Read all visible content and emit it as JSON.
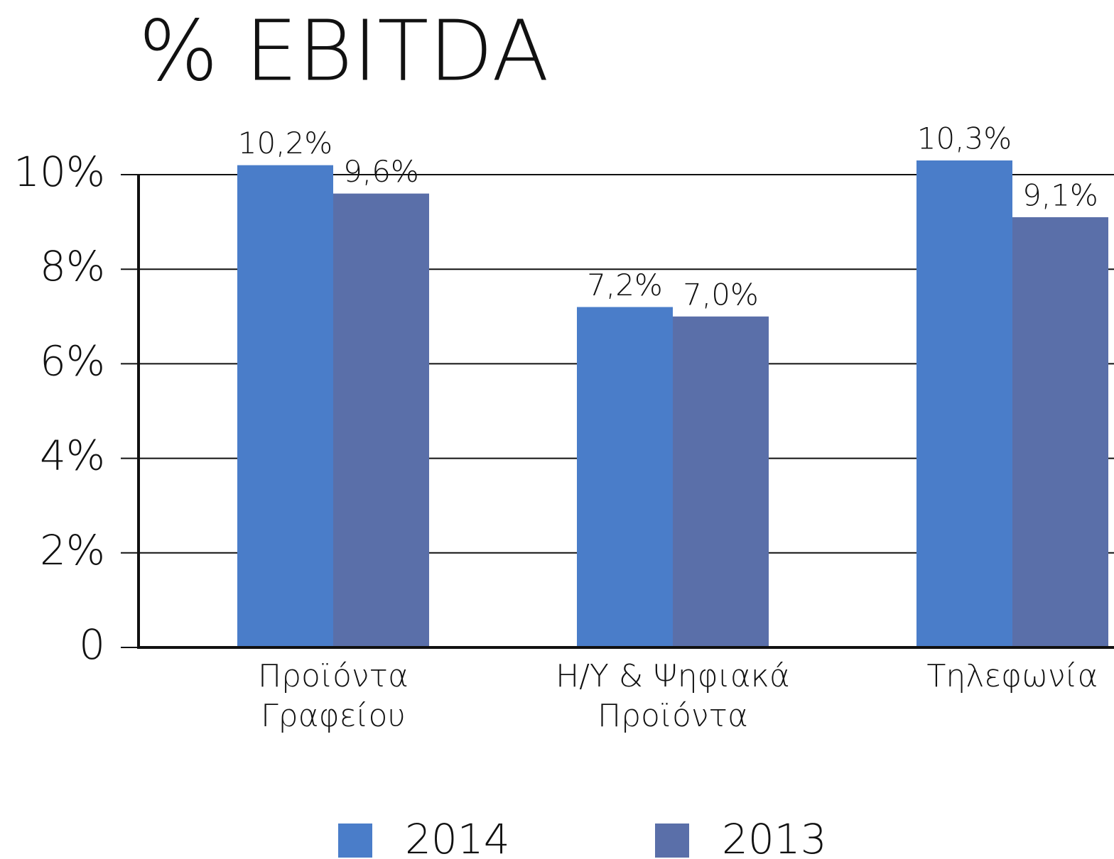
{
  "chart_data": {
    "type": "bar",
    "title": "% EBITDA",
    "categories": [
      [
        "Προϊόντα",
        "Γραφείου"
      ],
      [
        "Η/Υ & Ψηφιακά",
        "Προϊόντα"
      ],
      [
        "Τηλεφωνία"
      ]
    ],
    "series": [
      {
        "name": "2014",
        "color": "#4a7dc9",
        "values": [
          10.2,
          7.2,
          10.3
        ],
        "value_labels": [
          "10,2%",
          "7,2%",
          "10,3%"
        ]
      },
      {
        "name": "2013",
        "color": "#5a6fa9",
        "values": [
          9.6,
          7.0,
          9.1
        ],
        "value_labels": [
          "9,6%",
          "7,0%",
          "9,1%"
        ]
      }
    ],
    "ylim": [
      0,
      10
    ],
    "yticks": [
      0,
      {
        "value": 2,
        "label": "2%"
      },
      {
        "value": 4,
        "label": "4%"
      },
      {
        "value": 6,
        "label": "6%"
      },
      {
        "value": 8,
        "label": "8%"
      },
      {
        "value": 10,
        "label": "10%"
      }
    ],
    "grid": true,
    "legend": "bottom"
  }
}
